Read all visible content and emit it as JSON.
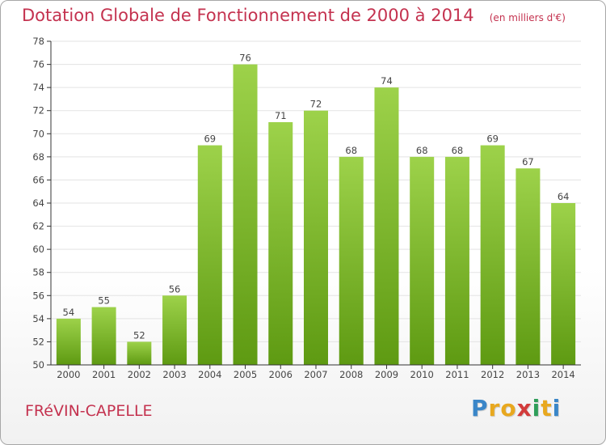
{
  "header": {
    "title": "Dotation Globale de Fonctionnement de 2000 à 2014",
    "subtitle": "(en milliers d'€)"
  },
  "footer": {
    "commune": "FRéVIN-CAPELLE",
    "brand": "Proxiti"
  },
  "colors": {
    "title": "#c4324f",
    "bar_top": "#9dd24a",
    "bar_bottom": "#5e9a12",
    "grid": "#e3e3e3",
    "axis": "#333333"
  },
  "chart_data": {
    "type": "bar",
    "title": "Dotation Globale de Fonctionnement de 2000 à 2014",
    "subtitle": "(en milliers d'€)",
    "categories": [
      "2000",
      "2001",
      "2002",
      "2003",
      "2004",
      "2005",
      "2006",
      "2007",
      "2008",
      "2009",
      "2010",
      "2011",
      "2012",
      "2013",
      "2014"
    ],
    "values": [
      54,
      55,
      52,
      56,
      69,
      76,
      71,
      72,
      68,
      74,
      68,
      68,
      69,
      67,
      64
    ],
    "xlabel": "",
    "ylabel": "",
    "ylim": [
      50,
      78
    ],
    "yticks": [
      50,
      52,
      54,
      56,
      58,
      60,
      62,
      64,
      66,
      68,
      70,
      72,
      74,
      76,
      78
    ],
    "grid": true,
    "legend": "none"
  }
}
